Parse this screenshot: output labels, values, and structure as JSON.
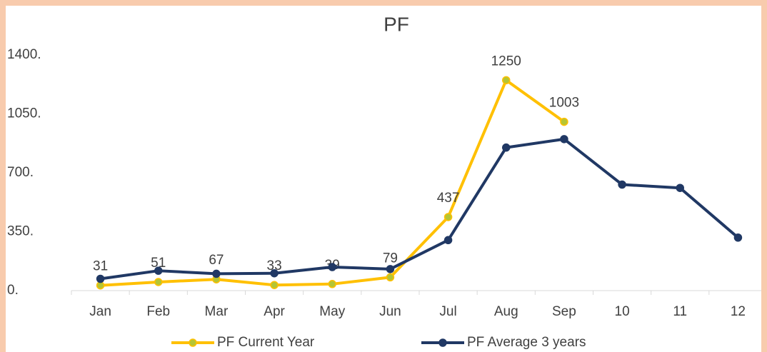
{
  "chart_data": {
    "type": "line",
    "title": "PF",
    "categories": [
      "Jan",
      "Feb",
      "Mar",
      "Apr",
      "May",
      "Jun",
      "Jul",
      "Aug",
      "Sep",
      "10",
      "11",
      "12"
    ],
    "series": [
      {
        "name": "PF Current Year",
        "color": "#ffc000",
        "marker_color": "#b5c534",
        "values": [
          31,
          51,
          67,
          33,
          39,
          79,
          437,
          1250,
          1003,
          null,
          null,
          null
        ]
      },
      {
        "name": "PF Average 3 years",
        "color": "#203864",
        "marker_color": "#203864",
        "values": [
          70,
          118,
          100,
          103,
          140,
          128,
          300,
          850,
          900,
          630,
          610,
          315
        ]
      }
    ],
    "ylim": [
      0,
      1400
    ],
    "yticks": [
      {
        "value": 0,
        "label": "0."
      },
      {
        "value": 350,
        "label": "350."
      },
      {
        "value": 700,
        "label": "700."
      },
      {
        "value": 1050,
        "label": "1050."
      },
      {
        "value": 1400,
        "label": "1400."
      }
    ],
    "grid": false,
    "legend": "bottom",
    "data_labels_series": [
      0
    ]
  }
}
